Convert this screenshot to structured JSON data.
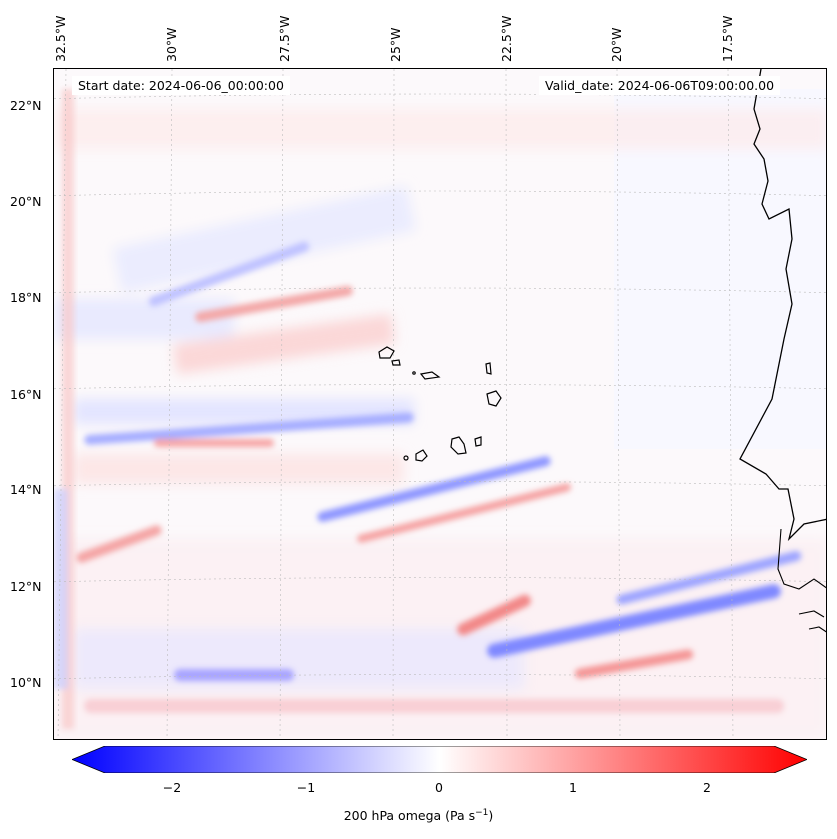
{
  "map": {
    "start_date_label": "Start date: 2024-06-06_00:00:00",
    "valid_date_label": "Valid_date: 2024-06-06T09:00:00.00",
    "lon_labels": [
      "32.5°W",
      "30°W",
      "27.5°W",
      "25°W",
      "22.5°W",
      "20°W",
      "17.5°W"
    ],
    "lat_labels": [
      "22°N",
      "20°N",
      "18°N",
      "16°N",
      "14°N",
      "12°N",
      "10°N"
    ]
  },
  "colorbar": {
    "ticks": [
      "−2",
      "−1",
      "0",
      "1",
      "2"
    ],
    "label": "200 hPa omega (Pa s",
    "label_exponent": "−1",
    "label_suffix": ")",
    "min_color": "#0000ff",
    "mid_color": "#ffffff",
    "max_color": "#ff0000"
  }
}
